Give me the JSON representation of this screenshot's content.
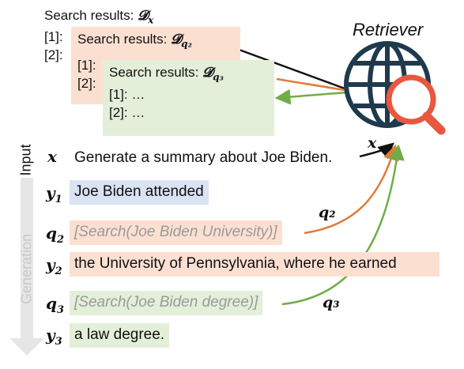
{
  "retriever": {
    "label": "Retriever"
  },
  "results": {
    "x": {
      "title": "Search results:",
      "symbol": "𝓓",
      "sub": "x",
      "items": [
        "[1]:",
        "[2]:"
      ]
    },
    "q2": {
      "title": "Search results:",
      "symbol": "𝓓",
      "sub": "q₂",
      "items": [
        "[1]:",
        "[2]:"
      ]
    },
    "q3": {
      "title": "Search results:",
      "symbol": "𝓓",
      "sub": "q₃",
      "items": [
        "[1]: …",
        "[2]: …"
      ]
    }
  },
  "side_labels": {
    "input": "Input",
    "generation": "Generation"
  },
  "rows": {
    "x": {
      "label": "x",
      "text": "Generate a summary about Joe Biden."
    },
    "y1": {
      "label": "y",
      "sub": "1",
      "text": "Joe Biden attended"
    },
    "q2": {
      "label": "q",
      "sub": "2",
      "text": "[Search(Joe Biden University)]"
    },
    "y2": {
      "label": "y",
      "sub": "2",
      "text": "the University of Pennsylvania, where he earned"
    },
    "q3": {
      "label": "q",
      "sub": "3",
      "text": "[Search(Joe Biden degree)]"
    },
    "y3": {
      "label": "y",
      "sub": "3",
      "text": "a law degree."
    }
  },
  "arrow_labels": {
    "x": "x",
    "q2": "q₂",
    "q3": "q₃"
  },
  "colors": {
    "orange_fill": "#fbe0d2",
    "green_fill": "#e3efd9",
    "blue_fill": "#dae3f3",
    "orange_line": "#e07b39",
    "green_line": "#70ad47",
    "globe": "#1f3a4d",
    "magnifier": "#e8573f"
  },
  "icons": {
    "retriever": "globe-magnifier-icon"
  }
}
